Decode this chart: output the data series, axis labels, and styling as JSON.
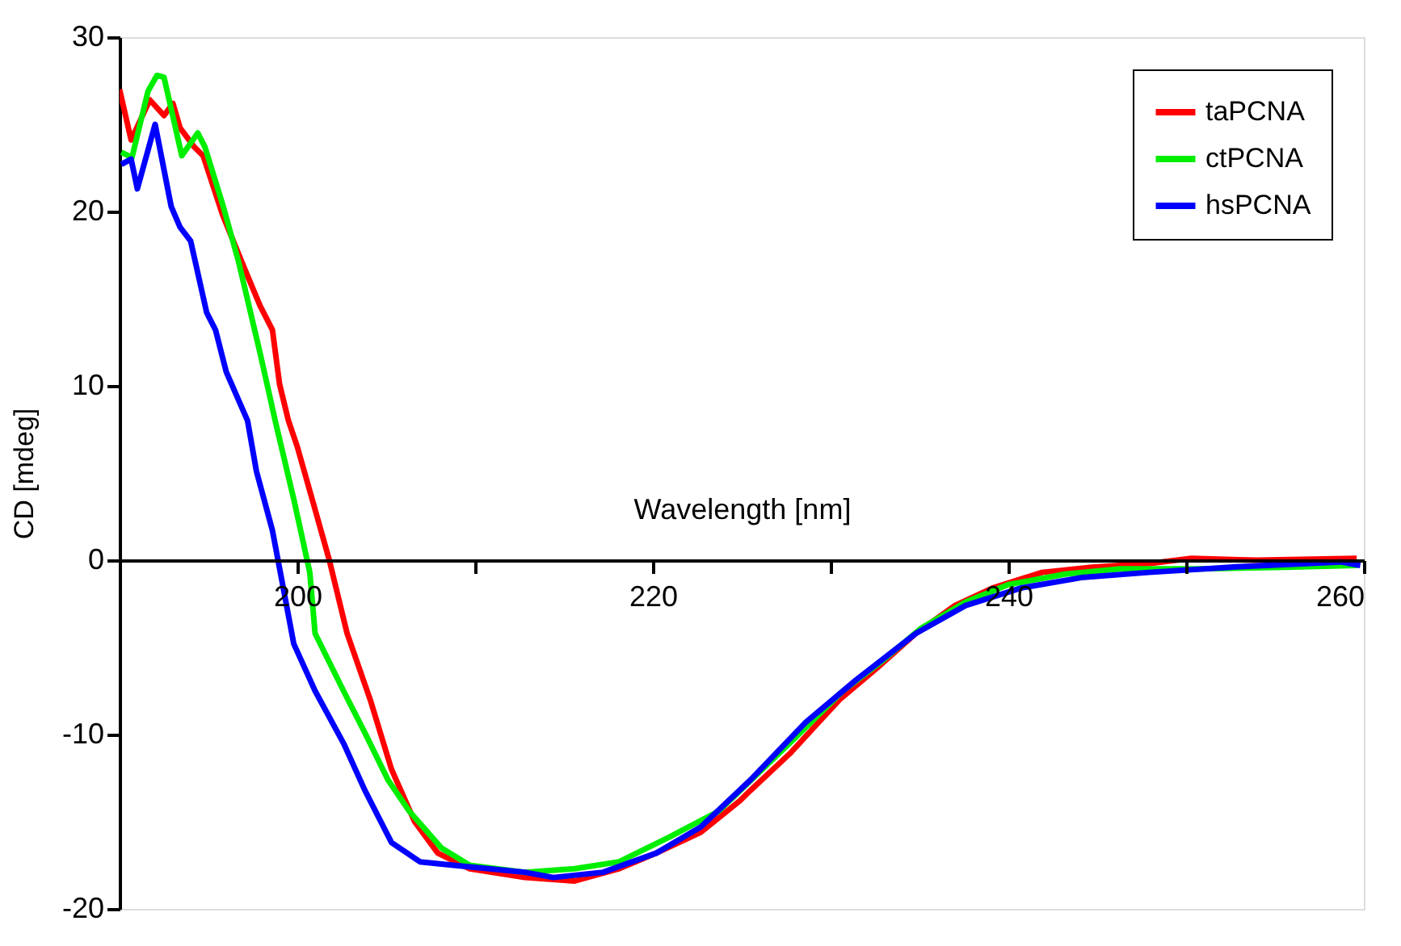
{
  "chart_data": {
    "type": "line",
    "xlabel": "Wavelength [nm]",
    "ylabel": "CD [mdeg]",
    "xlim": [
      190,
      260
    ],
    "ylim": [
      -20,
      30
    ],
    "xticks": [
      200,
      {
        "value": 210,
        "label": null
      },
      220,
      {
        "value": 230,
        "label": null
      },
      240,
      {
        "value": 250,
        "label": null
      },
      260
    ],
    "yticks": [
      -20,
      -10,
      0,
      10,
      20,
      30
    ],
    "grid": false,
    "legend": "top right",
    "marker": "none",
    "line_style": "solid",
    "series": [
      {
        "name": "taPCNA",
        "color": "#ff0000",
        "x": [
          190,
          190.65,
          191.7,
          192.5,
          193,
          193.4,
          194.2,
          194.7,
          195.8,
          197,
          197.9,
          198.6,
          199,
          199.5,
          200,
          201,
          201.8,
          202.8,
          204.1,
          205.3,
          206.6,
          207.9,
          209.7,
          212.8,
          215.6,
          218.1,
          220.2,
          222.7,
          224.9,
          225.5,
          227.7,
          230.5,
          232.6,
          234.8,
          237,
          239.1,
          241.9,
          244.7,
          247.9,
          250.3,
          254,
          259.6
        ],
        "values": [
          27,
          24.1,
          26.4,
          25.5,
          26.2,
          24.8,
          23.7,
          23.2,
          19.8,
          16.8,
          14.6,
          13.2,
          10.1,
          8,
          6.5,
          2.9,
          0,
          -4.2,
          -8,
          -12,
          -15,
          -16.8,
          -17.7,
          -18.2,
          -18.4,
          -17.7,
          -16.8,
          -15.6,
          -13.8,
          -13.2,
          -11.1,
          -8,
          -6.2,
          -4.2,
          -2.6,
          -1.6,
          -0.7,
          -0.4,
          -0.2,
          0.1,
          0,
          0.1
        ]
      },
      {
        "name": "ctPCNA",
        "color": "#00ee00",
        "x": [
          190.1,
          190.7,
          191.6,
          192.1,
          192.5,
          193.5,
          194.4,
          194.8,
          195.8,
          196.7,
          197.9,
          198.8,
          199.8,
          200.7,
          201,
          202.6,
          203.8,
          205.1,
          206.3,
          208.1,
          209.7,
          212.8,
          215.6,
          218.1,
          220.9,
          223.7,
          227.7,
          230.7,
          233,
          235.1,
          237.6,
          240,
          243.2,
          246.3,
          250.9,
          255.6,
          259.6
        ],
        "values": [
          23.4,
          23.1,
          26.9,
          27.8,
          27.7,
          23.2,
          24.5,
          23.7,
          20.4,
          17.1,
          11.9,
          7.8,
          3.5,
          -0.7,
          -4.2,
          -7.5,
          -9.9,
          -12.6,
          -14.4,
          -16.5,
          -17.5,
          -17.9,
          -17.7,
          -17.3,
          -15.9,
          -14.4,
          -10.5,
          -7.5,
          -5.7,
          -3.9,
          -2.4,
          -1.4,
          -0.8,
          -0.5,
          -0.5,
          -0.4,
          -0.3
        ]
      },
      {
        "name": "hsPCNA",
        "color": "#0000ff",
        "x": [
          190.1,
          190.65,
          191,
          192,
          192.9,
          193.4,
          194,
          194.9,
          195.4,
          196,
          197.2,
          197.7,
          198.6,
          199.1,
          199.8,
          201,
          202.6,
          203.8,
          205.3,
          206.9,
          208.8,
          212.8,
          214.4,
          217.2,
          220.2,
          222.7,
          225.5,
          228.6,
          231.4,
          234.8,
          237.6,
          240.7,
          244.1,
          247.9,
          252.5,
          258.7,
          259.8
        ],
        "values": [
          22.7,
          23,
          21.3,
          25,
          20.3,
          19.1,
          18.3,
          14.2,
          13.2,
          10.8,
          8,
          5.1,
          1.7,
          -1,
          -4.8,
          -7.5,
          -10.5,
          -13.2,
          -16.2,
          -17.3,
          -17.5,
          -17.9,
          -18.2,
          -17.9,
          -16.8,
          -15.3,
          -12.6,
          -9.3,
          -6.9,
          -4.2,
          -2.6,
          -1.6,
          -1,
          -0.7,
          -0.4,
          -0.1,
          -0.3
        ]
      }
    ]
  }
}
